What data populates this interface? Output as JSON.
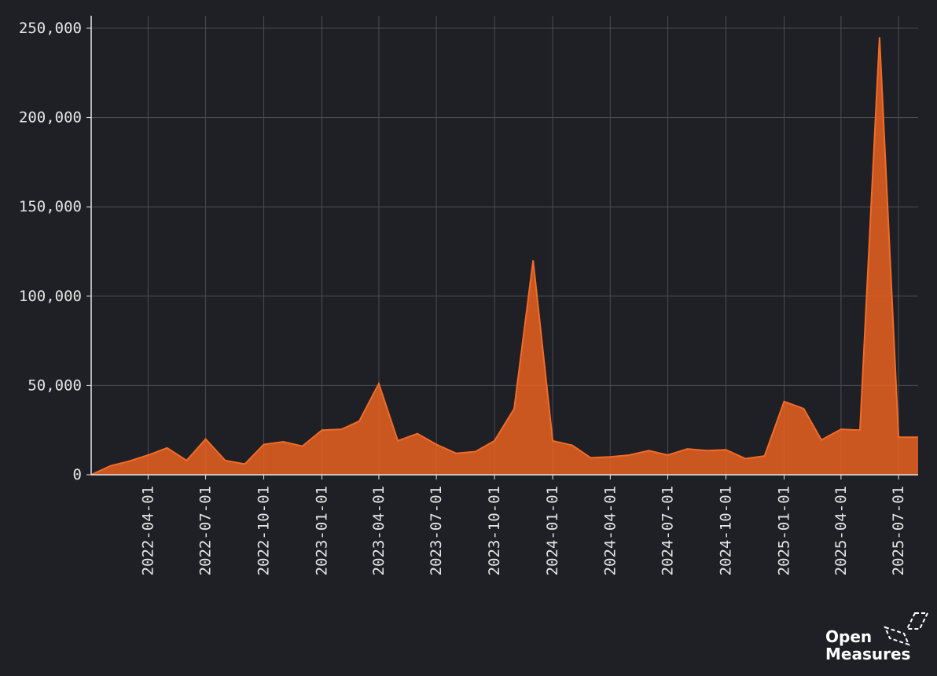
{
  "chart_data": {
    "type": "area",
    "title": "",
    "xlabel": "",
    "ylabel": "",
    "ylim": [
      0,
      257000
    ],
    "xlim": [
      "2022-01-01",
      "2025-08-01"
    ],
    "y_ticks": [
      {
        "value": 0,
        "label": "0"
      },
      {
        "value": 50000,
        "label": "50,000"
      },
      {
        "value": 100000,
        "label": "100,000"
      },
      {
        "value": 150000,
        "label": "150,000"
      },
      {
        "value": 200000,
        "label": "200,000"
      },
      {
        "value": 250000,
        "label": "250,000"
      }
    ],
    "x_ticks": [
      "2022-04-01",
      "2022-07-01",
      "2022-10-01",
      "2023-01-01",
      "2023-04-01",
      "2023-07-01",
      "2023-10-01",
      "2024-01-01",
      "2024-04-01",
      "2024-07-01",
      "2024-10-01",
      "2025-01-01",
      "2025-04-01",
      "2025-07-01"
    ],
    "grid": true,
    "color": "#e8621f",
    "series": [
      {
        "x": [
          "2022-01-01",
          "2022-02-01",
          "2022-03-01",
          "2022-04-01",
          "2022-05-01",
          "2022-06-01",
          "2022-07-01",
          "2022-08-01",
          "2022-09-01",
          "2022-10-01",
          "2022-11-01",
          "2022-12-01",
          "2023-01-01",
          "2023-02-01",
          "2023-03-01",
          "2023-04-01",
          "2023-05-01",
          "2023-06-01",
          "2023-07-01",
          "2023-08-01",
          "2023-09-01",
          "2023-10-01",
          "2023-11-01",
          "2023-12-01",
          "2024-01-01",
          "2024-02-01",
          "2024-03-01",
          "2024-04-01",
          "2024-05-01",
          "2024-06-01",
          "2024-07-01",
          "2024-08-01",
          "2024-09-01",
          "2024-10-01",
          "2024-11-01",
          "2024-12-01",
          "2025-01-01",
          "2025-02-01",
          "2025-03-01",
          "2025-04-01",
          "2025-05-01",
          "2025-06-01",
          "2025-07-01",
          "2025-08-01"
        ],
        "y": [
          0,
          5000,
          7500,
          11000,
          15000,
          8000,
          20000,
          8000,
          6000,
          17000,
          18500,
          16000,
          25000,
          25500,
          30000,
          51000,
          19000,
          23000,
          17000,
          12000,
          13000,
          19000,
          37000,
          120000,
          19000,
          16500,
          9500,
          10000,
          11000,
          13500,
          11000,
          14500,
          13500,
          14000,
          9000,
          10500,
          41000,
          37000,
          19500,
          25500,
          25000,
          245000,
          21000,
          21000
        ]
      }
    ]
  },
  "logo": {
    "line1": "Open",
    "line2": "Measures"
  }
}
